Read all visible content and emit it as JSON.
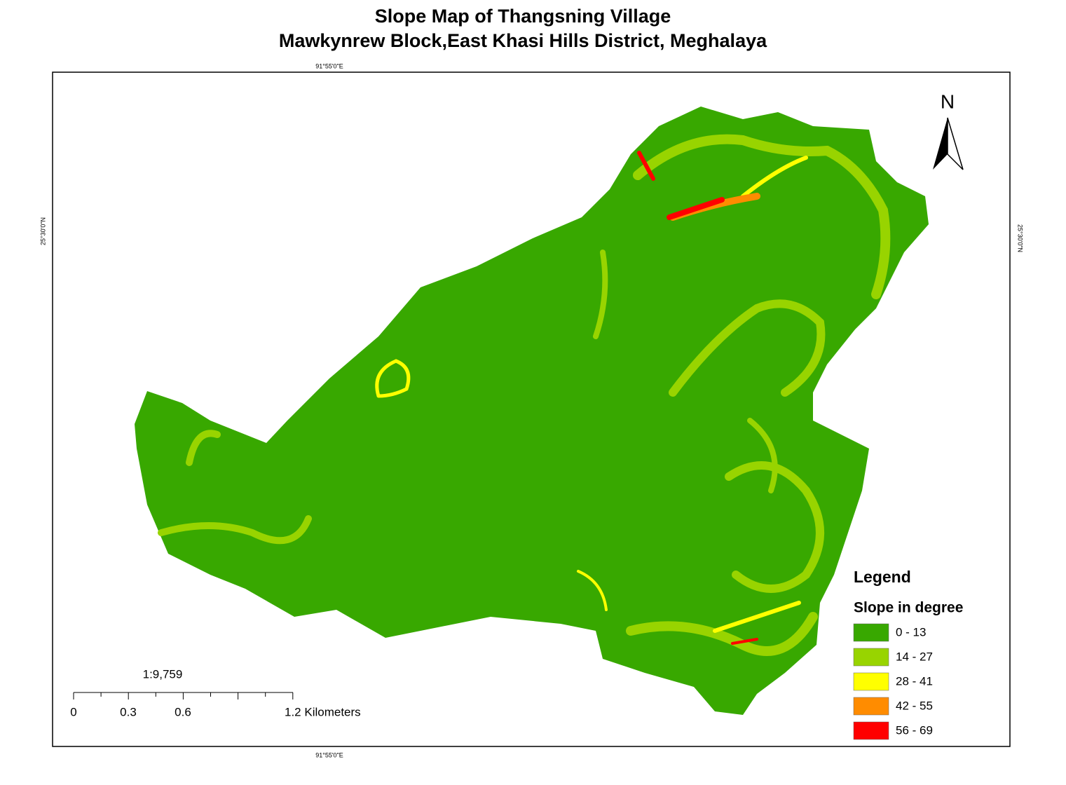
{
  "title": "Slope Map of Thangsning Village",
  "subtitle": "Mawkynrew Block,East Khasi Hills District, Meghalaya",
  "graticule": {
    "top": "91°55'0\"E",
    "bottom": "91°55'0\"E",
    "left": "25°30'0\"N",
    "right": "25°30'0\"N"
  },
  "north": "N",
  "legend": {
    "title": "Legend",
    "subtitle": "Slope in degree",
    "items": [
      {
        "label": "0 - 13",
        "color": "#38a800"
      },
      {
        "label": "14 - 27",
        "color": "#98d400"
      },
      {
        "label": "28 - 41",
        "color": "#ffff00"
      },
      {
        "label": "42 - 55",
        "color": "#ff8c00"
      },
      {
        "label": "56 - 69",
        "color": "#ff0000"
      }
    ]
  },
  "scale": {
    "ratio": "1:9,759",
    "labels": [
      "0",
      "0.3",
      "0.6",
      "1.2 Kilometers"
    ]
  }
}
